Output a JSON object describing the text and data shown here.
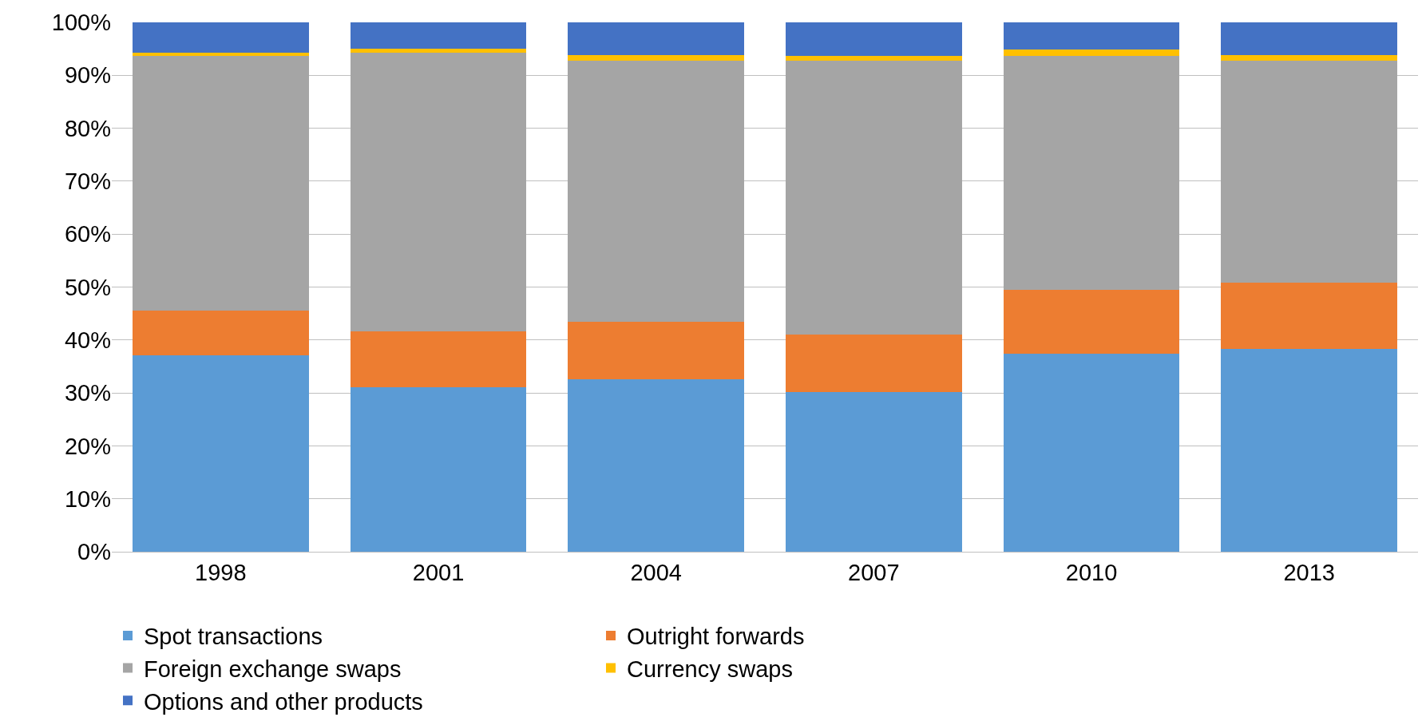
{
  "chart_data": {
    "type": "bar",
    "stacked": true,
    "categories": [
      "1998",
      "2001",
      "2004",
      "2007",
      "2010",
      "2013"
    ],
    "series": [
      {
        "name": "Spot transactions",
        "color": "#5b9bd5",
        "values": [
          37.1,
          31.1,
          32.6,
          30.1,
          37.4,
          38.3
        ]
      },
      {
        "name": "Outright forwards",
        "color": "#ed7d31",
        "values": [
          8.5,
          10.5,
          10.8,
          11.0,
          12.0,
          12.6
        ]
      },
      {
        "name": "Foreign exchange swaps",
        "color": "#a5a5a5",
        "values": [
          48.1,
          52.7,
          49.3,
          51.6,
          44.3,
          41.8
        ]
      },
      {
        "name": "Currency swaps",
        "color": "#ffc000",
        "values": [
          0.6,
          0.7,
          1.1,
          1.0,
          1.1,
          1.1
        ]
      },
      {
        "name": "Options and other products",
        "color": "#4472c4",
        "values": [
          5.7,
          5.0,
          6.2,
          6.3,
          5.2,
          6.2
        ]
      }
    ],
    "ylim": [
      0,
      100
    ],
    "yticks": [
      {
        "value": 0,
        "label": "0%"
      },
      {
        "value": 10,
        "label": "10%"
      },
      {
        "value": 20,
        "label": "20%"
      },
      {
        "value": 30,
        "label": "30%"
      },
      {
        "value": 40,
        "label": "40%"
      },
      {
        "value": 50,
        "label": "50%"
      },
      {
        "value": 60,
        "label": "60%"
      },
      {
        "value": 70,
        "label": "70%"
      },
      {
        "value": 80,
        "label": "80%"
      },
      {
        "value": 90,
        "label": "90%"
      },
      {
        "value": 100,
        "label": "100%"
      }
    ],
    "grid": "y",
    "legend": "bottom"
  }
}
